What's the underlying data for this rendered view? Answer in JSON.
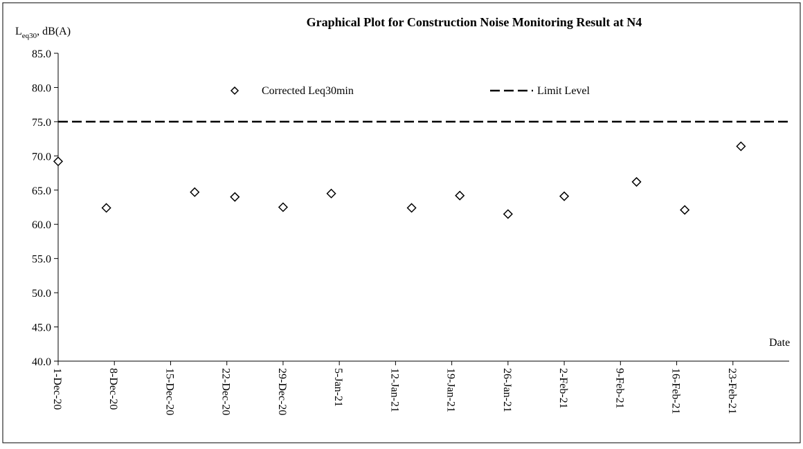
{
  "chart_data": {
    "type": "scatter",
    "title": "Graphical Plot for Construction Noise Monitoring Result at N4",
    "y_label_parts": [
      "L",
      "eq30",
      ", dB(A)"
    ],
    "x_label": "Date",
    "ylim": [
      40,
      85
    ],
    "yticks": [
      {
        "value": 40,
        "label": "40.0"
      },
      {
        "value": 45,
        "label": "45.0"
      },
      {
        "value": 50,
        "label": "50.0"
      },
      {
        "value": 55,
        "label": "55.0"
      },
      {
        "value": 60,
        "label": "60.0"
      },
      {
        "value": 65,
        "label": "65.0"
      },
      {
        "value": 70,
        "label": "70.0"
      },
      {
        "value": 75,
        "label": "75.0"
      },
      {
        "value": 80,
        "label": "80.0"
      },
      {
        "value": 85,
        "label": "85.0"
      }
    ],
    "xlim": [
      "2020-12-01",
      "2021-03-02"
    ],
    "xticks": [
      {
        "value": "2020-12-01",
        "label": "1-Dec-20"
      },
      {
        "value": "2020-12-08",
        "label": "8-Dec-20"
      },
      {
        "value": "2020-12-15",
        "label": "15-Dec-20"
      },
      {
        "value": "2020-12-22",
        "label": "22-Dec-20"
      },
      {
        "value": "2020-12-29",
        "label": "29-Dec-20"
      },
      {
        "value": "2021-01-05",
        "label": "5-Jan-21"
      },
      {
        "value": "2021-01-12",
        "label": "12-Jan-21"
      },
      {
        "value": "2021-01-19",
        "label": "19-Jan-21"
      },
      {
        "value": "2021-01-26",
        "label": "26-Jan-21"
      },
      {
        "value": "2021-02-02",
        "label": "2-Feb-21"
      },
      {
        "value": "2021-02-09",
        "label": "9-Feb-21"
      },
      {
        "value": "2021-02-16",
        "label": "16-Feb-21"
      },
      {
        "value": "2021-02-23",
        "label": "23-Feb-21"
      }
    ],
    "series": [
      {
        "name": "Corrected Leq30min",
        "color": "#000000",
        "marker": "diamond",
        "x": [
          "2020-12-01",
          "2020-12-07",
          "2020-12-18",
          "2020-12-23",
          "2020-12-29",
          "2021-01-04",
          "2021-01-14",
          "2021-01-20",
          "2021-01-26",
          "2021-02-02",
          "2021-02-11",
          "2021-02-17",
          "2021-02-24"
        ],
        "values": [
          69.2,
          62.4,
          64.7,
          64.0,
          62.5,
          64.5,
          62.4,
          64.2,
          61.5,
          64.1,
          66.2,
          62.1,
          71.4
        ]
      }
    ],
    "limit": {
      "name": "Limit Level",
      "value": 75,
      "color": "#000000",
      "style": "dashed"
    }
  }
}
